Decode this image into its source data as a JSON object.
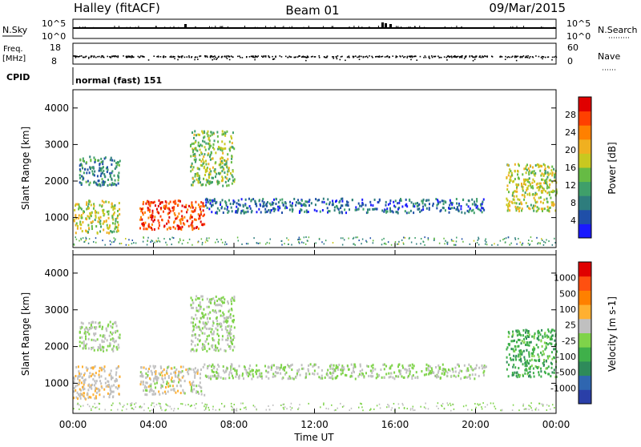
{
  "header": {
    "station": "Halley (fitACF)",
    "beam": "Beam 01",
    "date": "09/Mar/2015"
  },
  "strips": {
    "nsky_label": "N.Sky",
    "nsearch_label": "N.Search",
    "nsky_ticks": [
      "10^5",
      "10^0"
    ],
    "nsearch_ticks": [
      "10^5",
      "10^0"
    ],
    "freq_label": "Freq.",
    "freq_unit": "[MHz]",
    "freq_ticks": [
      "18",
      "8"
    ],
    "nave_label": "Nave",
    "nave_ticks": [
      "60",
      "0"
    ],
    "cpid_label": "CPID",
    "cpid_text": "normal (fast) 151"
  },
  "power_panel": {
    "ylabel": "Slant Range [km]",
    "yticks": [
      "4000",
      "3000",
      "2000",
      "1000"
    ],
    "colorbar_label": "Power [dB]",
    "colorbar_ticks": [
      "28",
      "24",
      "20",
      "16",
      "12",
      "8",
      "4"
    ],
    "colors": [
      "#1a1aff",
      "#1f4fa8",
      "#2e7d7d",
      "#3f9f6a",
      "#66bb44",
      "#c8c820",
      "#f0b020",
      "#ff8000",
      "#ff4000",
      "#e00000"
    ]
  },
  "velocity_panel": {
    "ylabel": "Slant Range [km]",
    "yticks": [
      "4000",
      "3000",
      "2000",
      "1000"
    ],
    "colorbar_label": "Velocity [m s-1]",
    "colorbar_ticks": [
      "1000",
      "500",
      "100",
      "25",
      "-25",
      "-100",
      "-500",
      "-1000"
    ],
    "colors": [
      "#2a3fa8",
      "#2f66b0",
      "#2e8a5a",
      "#3fb04a",
      "#7fd34a",
      "#c0c0c0",
      "#ffb030",
      "#ff8000",
      "#ff5010",
      "#e00000"
    ]
  },
  "xaxis": {
    "ticks": [
      "00:00",
      "04:00",
      "08:00",
      "12:00",
      "16:00",
      "20:00",
      "00:00"
    ],
    "label": "Time UT"
  },
  "chart_data": {
    "type": "heatmap",
    "title": "Halley (fitACF) Beam 01 09/Mar/2015",
    "xlabel": "Time UT",
    "ylabel": "Slant Range [km]",
    "x_range_hours": [
      0,
      24
    ],
    "y_range_km": [
      180,
      4500
    ],
    "power_colorbar_range_db": [
      0,
      30
    ],
    "velocity_colorbar_range_ms": [
      -1000,
      1000
    ],
    "echo_regions": [
      {
        "t_start_h": 0.0,
        "t_end_h": 2.3,
        "range_start_km": 600,
        "range_end_km": 1500,
        "power_db": 16,
        "velocity_ms": 150
      },
      {
        "t_start_h": 0.3,
        "t_end_h": 2.3,
        "range_start_km": 1900,
        "range_end_km": 2700,
        "power_db": 8,
        "velocity_ms": 25
      },
      {
        "t_start_h": 3.3,
        "t_end_h": 6.5,
        "range_start_km": 700,
        "range_end_km": 1500,
        "power_db": 26,
        "velocity_ms": 100
      },
      {
        "t_start_h": 5.8,
        "t_end_h": 8.0,
        "range_start_km": 1900,
        "range_end_km": 3400,
        "power_db": 14,
        "velocity_ms": 0
      },
      {
        "t_start_h": 6.5,
        "t_end_h": 20.5,
        "range_start_km": 1150,
        "range_end_km": 1550,
        "power_db": 6,
        "velocity_ms": 0
      },
      {
        "t_start_h": 21.5,
        "t_end_h": 24.0,
        "range_start_km": 1200,
        "range_end_km": 2500,
        "power_db": 16,
        "velocity_ms": -300
      }
    ]
  }
}
